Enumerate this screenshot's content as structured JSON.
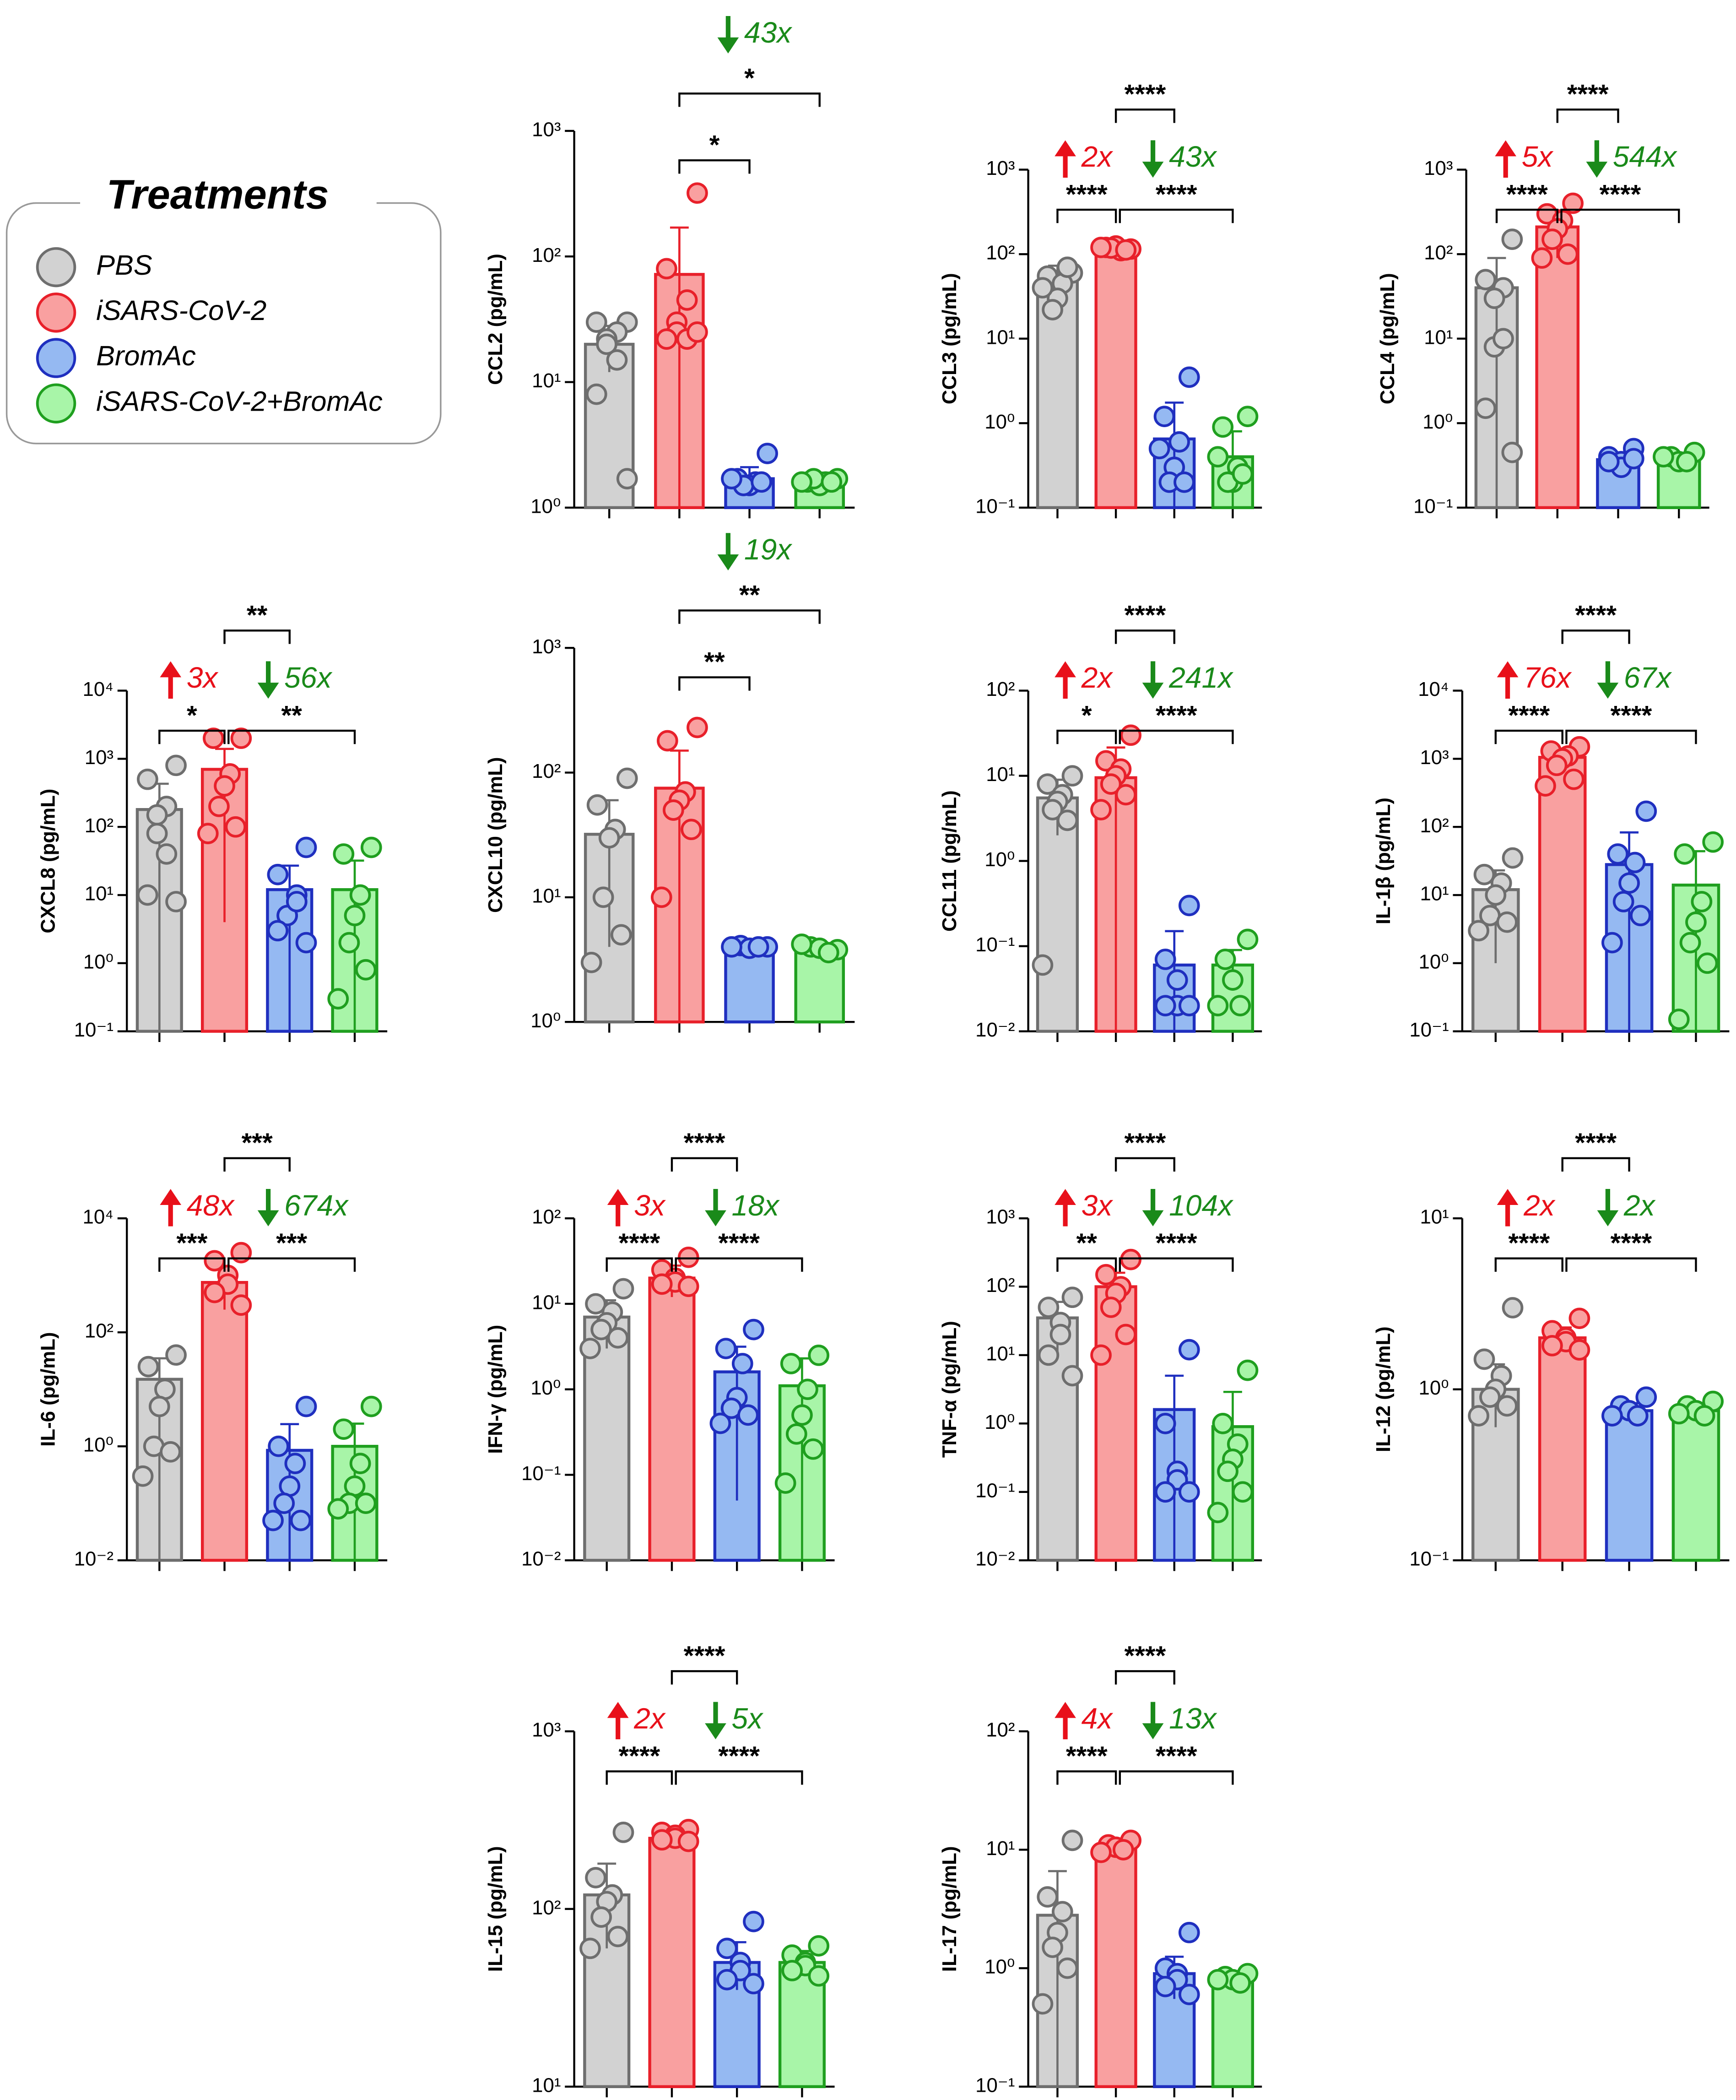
{
  "legend": {
    "title": "Treatments",
    "items": [
      {
        "name": "PBS",
        "color": "#d2d2d2",
        "edge": "#6e6e6e"
      },
      {
        "name": "iSARS-CoV-2",
        "color": "#f9a0a0",
        "edge": "#e8202a"
      },
      {
        "name": "BromAc",
        "color": "#95b9f2",
        "edge": "#1f2fbf"
      },
      {
        "name": "iSARS-CoV-2+BromAc",
        "color": "#a8f5a8",
        "edge": "#1f9f1f"
      }
    ]
  },
  "chart_data": [
    {
      "type": "bar",
      "ylabel": "CCL2 (pg/mL)",
      "yscale": "log",
      "ylim": [
        1,
        1000
      ],
      "yticks": [
        {
          "value": 1,
          "label": "10⁰"
        },
        {
          "value": 10,
          "label": "10¹"
        },
        {
          "value": 100,
          "label": "10²"
        },
        {
          "value": 1000,
          "label": "10³"
        }
      ],
      "values": [
        20,
        72,
        1.7,
        1.7
      ],
      "errors": [
        8,
        98,
        0.4,
        0.2
      ],
      "points": [
        [
          30,
          30,
          25,
          22,
          20,
          15,
          8,
          1.7
        ],
        [
          320,
          80,
          45,
          30,
          25,
          22,
          22,
          25
        ],
        [
          2.7,
          1.7,
          1.6,
          1.5,
          1.5,
          1.6,
          1.7
        ],
        [
          1.7,
          1.6,
          1.6,
          1.5,
          1.7,
          1.6,
          1.6
        ]
      ],
      "brackets": [
        {
          "from": 1,
          "to": 2,
          "label": "*"
        },
        {
          "from": 1,
          "to": 3,
          "label": "*"
        }
      ],
      "folds": {
        "down": "43x"
      }
    },
    {
      "type": "bar",
      "ylabel": "CCL3 (pg/mL)",
      "yscale": "log",
      "ylim": [
        0.1,
        1000
      ],
      "yticks": [
        {
          "value": 0.1,
          "label": "10⁻¹"
        },
        {
          "value": 1,
          "label": "10⁰"
        },
        {
          "value": 10,
          "label": "10¹"
        },
        {
          "value": 100,
          "label": "10²"
        },
        {
          "value": 1000,
          "label": "10³"
        }
      ],
      "values": [
        48,
        115,
        0.65,
        0.4
      ],
      "errors": [
        25,
        10,
        1.1,
        0.4
      ],
      "points": [
        [
          60,
          55,
          45,
          30,
          22,
          70,
          40
        ],
        [
          115,
          120,
          110,
          125,
          118,
          112,
          120
        ],
        [
          3.5,
          1.2,
          0.6,
          0.3,
          0.2,
          0.2,
          0.5
        ],
        [
          1.2,
          0.9,
          0.3,
          0.2,
          0.2,
          0.25,
          0.4
        ]
      ],
      "brackets": [
        {
          "from": 0,
          "to": 1,
          "label": "****"
        },
        {
          "from": 1,
          "to": 3,
          "label": "****"
        },
        {
          "from": 1,
          "to": 2,
          "label": "****"
        }
      ],
      "folds": {
        "up": "2x",
        "down": "43x"
      }
    },
    {
      "type": "bar",
      "ylabel": "CCL4 (pg/mL)",
      "yscale": "log",
      "ylim": [
        0.1,
        1000
      ],
      "yticks": [
        {
          "value": 0.1,
          "label": "10⁻¹"
        },
        {
          "value": 1,
          "label": "10⁰"
        },
        {
          "value": 10,
          "label": "10¹"
        },
        {
          "value": 100,
          "label": "10²"
        },
        {
          "value": 1000,
          "label": "10³"
        }
      ],
      "values": [
        40,
        210,
        0.37,
        0.38
      ],
      "errors": [
        50,
        120,
        0.08,
        0.06
      ],
      "points": [
        [
          150,
          50,
          40,
          30,
          8,
          10,
          1.5,
          0.45
        ],
        [
          400,
          300,
          250,
          200,
          150,
          100,
          90
        ],
        [
          0.5,
          0.4,
          0.35,
          0.3,
          0.35,
          0.38
        ],
        [
          0.45,
          0.4,
          0.35,
          0.35,
          0.4
        ]
      ],
      "brackets": [
        {
          "from": 0,
          "to": 1,
          "label": "****"
        },
        {
          "from": 1,
          "to": 3,
          "label": "****"
        },
        {
          "from": 1,
          "to": 2,
          "label": "****"
        }
      ],
      "folds": {
        "up": "5x",
        "down": "544x"
      }
    },
    {
      "type": "bar",
      "ylabel": "CXCL8 (pg/mL)",
      "yscale": "log",
      "ylim": [
        0.1,
        10000
      ],
      "yticks": [
        {
          "value": 0.1,
          "label": "10⁻¹"
        },
        {
          "value": 1,
          "label": "10⁰"
        },
        {
          "value": 10,
          "label": "10¹"
        },
        {
          "value": 100,
          "label": "10²"
        },
        {
          "value": 1000,
          "label": "10³"
        },
        {
          "value": 10000,
          "label": "10⁴"
        }
      ],
      "values": [
        180,
        700,
        12,
        12
      ],
      "errors": [
        250,
        696,
        15,
        20
      ],
      "points": [
        [
          800,
          500,
          200,
          150,
          80,
          40,
          10,
          8
        ],
        [
          2000,
          2000,
          600,
          400,
          200,
          100,
          80
        ],
        [
          50,
          20,
          10,
          5,
          5,
          8,
          3,
          2
        ],
        [
          50,
          40,
          10,
          5,
          2,
          0.8,
          0.3
        ]
      ],
      "brackets": [
        {
          "from": 0,
          "to": 1,
          "label": "*"
        },
        {
          "from": 1,
          "to": 3,
          "label": "**"
        },
        {
          "from": 1,
          "to": 2,
          "label": "**"
        }
      ],
      "folds": {
        "up": "3x",
        "down": "56x"
      }
    },
    {
      "type": "bar",
      "ylabel": "CXCL10 (pg/mL)",
      "yscale": "log",
      "ylim": [
        1,
        1000
      ],
      "yticks": [
        {
          "value": 1,
          "label": "10⁰"
        },
        {
          "value": 10,
          "label": "10¹"
        },
        {
          "value": 100,
          "label": "10²"
        },
        {
          "value": 1000,
          "label": "10³"
        }
      ],
      "values": [
        32,
        75,
        4,
        3.8
      ],
      "errors": [
        28,
        75,
        0.2,
        0.3
      ],
      "points": [
        [
          90,
          55,
          35,
          30,
          10,
          5,
          3
        ],
        [
          230,
          180,
          70,
          60,
          50,
          35,
          10
        ],
        [
          4,
          4.1,
          3.9,
          4,
          4
        ],
        [
          3.8,
          4,
          3.9,
          3.6,
          4.2
        ]
      ],
      "brackets": [
        {
          "from": 1,
          "to": 2,
          "label": "**"
        },
        {
          "from": 1,
          "to": 3,
          "label": "**"
        }
      ],
      "folds": {
        "down": "19x"
      }
    },
    {
      "type": "bar",
      "ylabel": "CCL11 (pg/mL)",
      "yscale": "log",
      "ylim": [
        0.01,
        100
      ],
      "yticks": [
        {
          "value": 0.01,
          "label": "10⁻²"
        },
        {
          "value": 0.1,
          "label": "10⁻¹"
        },
        {
          "value": 1,
          "label": "10⁰"
        },
        {
          "value": 10,
          "label": "10¹"
        },
        {
          "value": 100,
          "label": "10²"
        }
      ],
      "values": [
        5.5,
        9.5,
        0.06,
        0.06
      ],
      "errors": [
        3.5,
        12,
        0.09,
        0.03
      ],
      "points": [
        [
          10,
          8,
          6,
          5,
          4,
          3,
          0.06
        ],
        [
          30,
          15,
          12,
          10,
          8,
          6,
          4
        ],
        [
          0.3,
          0.07,
          0.04,
          0.02,
          0.02,
          0.02
        ],
        [
          0.12,
          0.07,
          0.04,
          0.02,
          0.02
        ]
      ],
      "brackets": [
        {
          "from": 0,
          "to": 1,
          "label": "*"
        },
        {
          "from": 1,
          "to": 3,
          "label": "****"
        },
        {
          "from": 1,
          "to": 2,
          "label": "****"
        }
      ],
      "folds": {
        "up": "2x",
        "down": "241x"
      }
    },
    {
      "type": "bar",
      "ylabel": "IL-1β (pg/mL)",
      "yscale": "log",
      "ylim": [
        0.1,
        10000
      ],
      "yticks": [
        {
          "value": 0.1,
          "label": "10⁻¹"
        },
        {
          "value": 1,
          "label": "10⁰"
        },
        {
          "value": 10,
          "label": "10¹"
        },
        {
          "value": 100,
          "label": "10²"
        },
        {
          "value": 1000,
          "label": "10³"
        },
        {
          "value": 10000,
          "label": "10⁴"
        }
      ],
      "values": [
        12,
        1050,
        28,
        14
      ],
      "errors": [
        11,
        350,
        55,
        30
      ],
      "points": [
        [
          35,
          20,
          15,
          10,
          5,
          4,
          3
        ],
        [
          1500,
          1300,
          1100,
          1000,
          800,
          500,
          400
        ],
        [
          170,
          40,
          30,
          15,
          8,
          5,
          2
        ],
        [
          60,
          40,
          8,
          4,
          2,
          1,
          0.15
        ]
      ],
      "brackets": [
        {
          "from": 0,
          "to": 1,
          "label": "****"
        },
        {
          "from": 1,
          "to": 3,
          "label": "****"
        },
        {
          "from": 1,
          "to": 2,
          "label": "****"
        }
      ],
      "folds": {
        "up": "76x",
        "down": "67x"
      }
    },
    {
      "type": "bar",
      "ylabel": "IL-6 (pg/mL)",
      "yscale": "log",
      "ylim": [
        0.01,
        10000
      ],
      "yticks": [
        {
          "value": 0.01,
          "label": "10⁻²"
        },
        {
          "value": 1,
          "label": "10⁰"
        },
        {
          "value": 100,
          "label": "10²"
        },
        {
          "value": 10000,
          "label": "10⁴"
        }
      ],
      "values": [
        15,
        750,
        0.85,
        1.0
      ],
      "errors": [
        20,
        500,
        1.6,
        1.5
      ],
      "points": [
        [
          40,
          25,
          10,
          5,
          1,
          0.8,
          0.3
        ],
        [
          2500,
          1800,
          1000,
          700,
          500,
          300
        ],
        [
          5,
          1,
          0.5,
          0.2,
          0.1,
          0.05,
          0.05
        ],
        [
          5,
          2,
          0.5,
          0.2,
          0.1,
          0.1,
          0.08
        ]
      ],
      "brackets": [
        {
          "from": 0,
          "to": 1,
          "label": "***"
        },
        {
          "from": 1,
          "to": 3,
          "label": "***"
        },
        {
          "from": 1,
          "to": 2,
          "label": "***"
        }
      ],
      "folds": {
        "up": "48x",
        "down": "674x"
      }
    },
    {
      "type": "bar",
      "ylabel": "IFN-γ (pg/mL)",
      "yscale": "log",
      "ylim": [
        0.01,
        100
      ],
      "yticks": [
        {
          "value": 0.01,
          "label": "10⁻²"
        },
        {
          "value": 0.1,
          "label": "10⁻¹"
        },
        {
          "value": 1,
          "label": "10⁰"
        },
        {
          "value": 10,
          "label": "10¹"
        },
        {
          "value": 100,
          "label": "10²"
        }
      ],
      "values": [
        7,
        20,
        1.6,
        1.1
      ],
      "errors": [
        4,
        8,
        1.55,
        1.2
      ],
      "points": [
        [
          15,
          10,
          8,
          6,
          5,
          4,
          3
        ],
        [
          35,
          25,
          20,
          18,
          17,
          16
        ],
        [
          5,
          3,
          2,
          0.8,
          0.6,
          0.5,
          0.4
        ],
        [
          2.5,
          2,
          1,
          0.5,
          0.3,
          0.2,
          0.08
        ]
      ],
      "brackets": [
        {
          "from": 0,
          "to": 1,
          "label": "****"
        },
        {
          "from": 1,
          "to": 3,
          "label": "****"
        },
        {
          "from": 1,
          "to": 2,
          "label": "****"
        }
      ],
      "folds": {
        "up": "3x",
        "down": "18x"
      }
    },
    {
      "type": "bar",
      "ylabel": "TNF-α (pg/mL)",
      "yscale": "log",
      "ylim": [
        0.01,
        1000
      ],
      "yticks": [
        {
          "value": 0.01,
          "label": "10⁻²"
        },
        {
          "value": 0.1,
          "label": "10⁻¹"
        },
        {
          "value": 1,
          "label": "10⁰"
        },
        {
          "value": 10,
          "label": "10¹"
        },
        {
          "value": 100,
          "label": "10²"
        },
        {
          "value": 1000,
          "label": "10³"
        }
      ],
      "values": [
        35,
        100,
        1.6,
        0.9
      ],
      "errors": [
        25,
        60,
        3.4,
        2
      ],
      "points": [
        [
          70,
          50,
          30,
          20,
          10,
          5
        ],
        [
          250,
          150,
          100,
          80,
          50,
          20,
          10
        ],
        [
          12,
          1,
          0.2,
          0.15,
          0.1,
          0.1
        ],
        [
          6,
          1,
          0.5,
          0.3,
          0.2,
          0.1,
          0.05
        ]
      ],
      "brackets": [
        {
          "from": 0,
          "to": 1,
          "label": "**"
        },
        {
          "from": 1,
          "to": 3,
          "label": "****"
        },
        {
          "from": 1,
          "to": 2,
          "label": "****"
        }
      ],
      "folds": {
        "up": "3x",
        "down": "104x"
      }
    },
    {
      "type": "bar",
      "ylabel": "IL-12 (pg/mL)",
      "yscale": "log",
      "ylim": [
        0.1,
        10
      ],
      "yticks": [
        {
          "value": 0.1,
          "label": "10⁻¹"
        },
        {
          "value": 1,
          "label": "10⁰"
        },
        {
          "value": 10,
          "label": "10¹"
        }
      ],
      "values": [
        1.0,
        2.0,
        0.75,
        0.75
      ],
      "errors": [
        0.4,
        0.3,
        0.08,
        0.07
      ],
      "points": [
        [
          3,
          1.5,
          1.2,
          1,
          0.9,
          0.8,
          0.7
        ],
        [
          2.6,
          2.2,
          2,
          1.9,
          1.8,
          1.7
        ],
        [
          0.9,
          0.8,
          0.75,
          0.7,
          0.7
        ],
        [
          0.85,
          0.8,
          0.75,
          0.7,
          0.72
        ]
      ],
      "brackets": [
        {
          "from": 0,
          "to": 1,
          "label": "****"
        },
        {
          "from": 1,
          "to": 3,
          "label": "****"
        },
        {
          "from": 1,
          "to": 2,
          "label": "****"
        }
      ],
      "folds": {
        "up": "2x",
        "down": "2x"
      }
    },
    {
      "type": "bar",
      "ylabel": "IL-15 (pg/mL)",
      "yscale": "log",
      "ylim": [
        10,
        1000
      ],
      "yticks": [
        {
          "value": 10,
          "label": "10¹"
        },
        {
          "value": 100,
          "label": "10²"
        },
        {
          "value": 1000,
          "label": "10³"
        }
      ],
      "values": [
        120,
        250,
        50,
        50
      ],
      "errors": [
        60,
        20,
        15,
        8
      ],
      "points": [
        [
          270,
          150,
          120,
          110,
          90,
          70,
          60
        ],
        [
          280,
          270,
          260,
          250,
          245,
          240
        ],
        [
          85,
          60,
          50,
          45,
          40,
          38
        ],
        [
          62,
          55,
          50,
          48,
          45,
          42
        ]
      ],
      "brackets": [
        {
          "from": 0,
          "to": 1,
          "label": "****"
        },
        {
          "from": 1,
          "to": 3,
          "label": "****"
        },
        {
          "from": 1,
          "to": 2,
          "label": "****"
        }
      ],
      "folds": {
        "up": "2x",
        "down": "5x"
      }
    },
    {
      "type": "bar",
      "ylabel": "IL-17 (pg/mL)",
      "yscale": "log",
      "ylim": [
        0.1,
        100
      ],
      "yticks": [
        {
          "value": 0.1,
          "label": "10⁻¹"
        },
        {
          "value": 1,
          "label": "10⁰"
        },
        {
          "value": 10,
          "label": "10¹"
        },
        {
          "value": 100,
          "label": "10²"
        }
      ],
      "values": [
        2.8,
        10.5,
        0.9,
        0.8
      ],
      "errors": [
        3.8,
        1,
        0.35,
        0.05
      ],
      "points": [
        [
          12,
          4,
          3,
          2,
          1.5,
          1,
          0.5
        ],
        [
          12,
          11,
          10.5,
          10,
          9.5
        ],
        [
          2,
          1,
          0.9,
          0.8,
          0.7,
          0.6
        ],
        [
          0.9,
          0.85,
          0.8,
          0.75,
          0.8
        ]
      ],
      "brackets": [
        {
          "from": 0,
          "to": 1,
          "label": "****"
        },
        {
          "from": 1,
          "to": 3,
          "label": "****"
        },
        {
          "from": 1,
          "to": 2,
          "label": "****"
        }
      ],
      "folds": {
        "up": "4x",
        "down": "13x"
      }
    }
  ]
}
